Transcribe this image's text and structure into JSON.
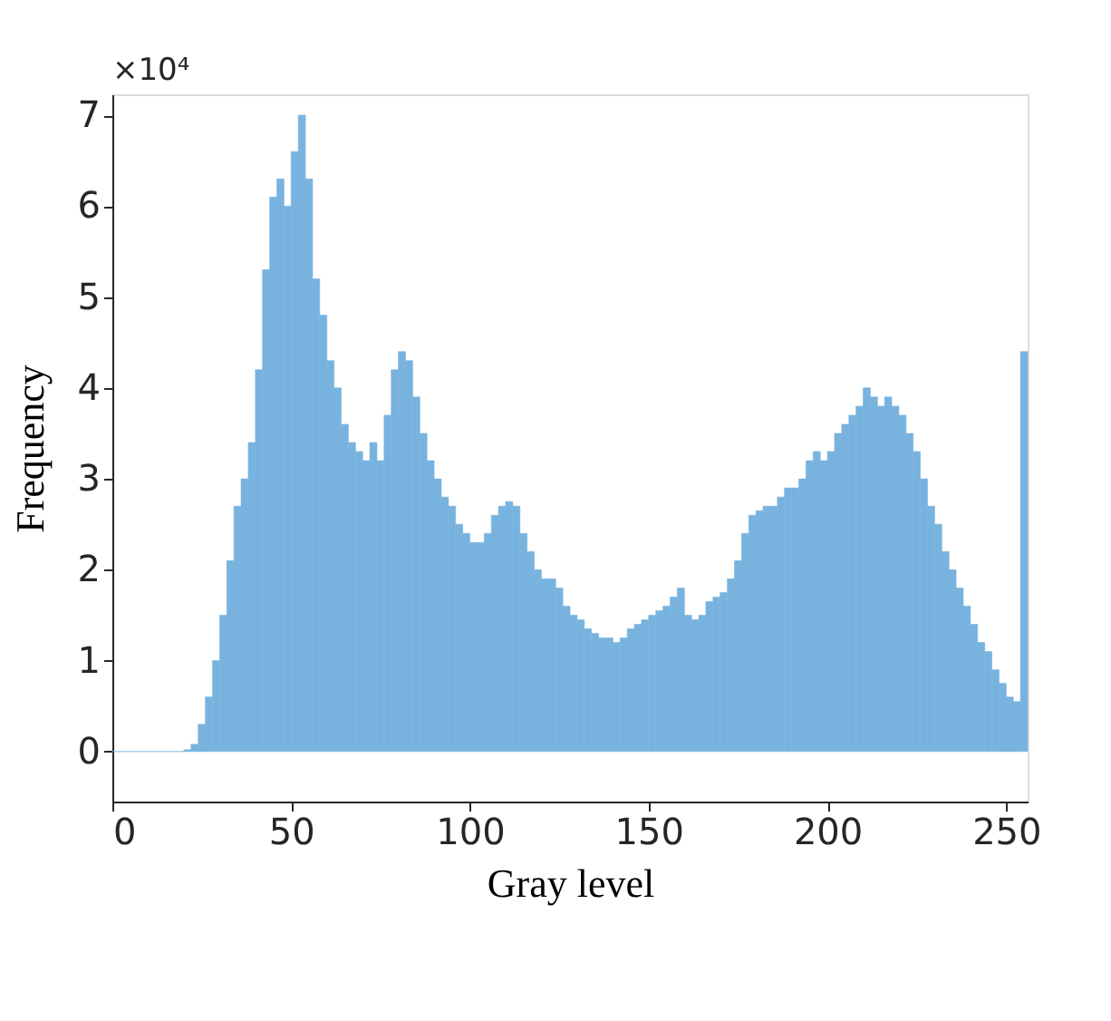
{
  "chart_data": {
    "type": "histogram",
    "xlabel": "Gray level",
    "ylabel": "Frequency",
    "annotations": [
      "×10⁴"
    ],
    "bins": [
      0,
      2,
      4,
      6,
      8,
      10,
      12,
      14,
      16,
      18,
      20,
      22,
      24,
      26,
      28,
      30,
      32,
      34,
      36,
      38,
      40,
      42,
      44,
      46,
      48,
      50,
      52,
      54,
      56,
      58,
      60,
      62,
      64,
      66,
      68,
      70,
      72,
      74,
      76,
      78,
      80,
      82,
      84,
      86,
      88,
      90,
      92,
      94,
      96,
      98,
      100,
      102,
      104,
      106,
      108,
      110,
      112,
      114,
      116,
      118,
      120,
      122,
      124,
      126,
      128,
      130,
      132,
      134,
      136,
      138,
      140,
      142,
      144,
      146,
      148,
      150,
      152,
      154,
      156,
      158,
      160,
      162,
      164,
      166,
      168,
      170,
      172,
      174,
      176,
      178,
      180,
      182,
      184,
      186,
      188,
      190,
      192,
      194,
      196,
      198,
      200,
      202,
      204,
      206,
      208,
      210,
      212,
      214,
      216,
      218,
      220,
      222,
      224,
      226,
      228,
      230,
      232,
      234,
      236,
      238,
      240,
      242,
      244,
      246,
      248,
      250,
      252,
      254,
      256
    ],
    "values": [
      0,
      0,
      0,
      0,
      0,
      0,
      0,
      0,
      0,
      0,
      0.02,
      0.08,
      0.3,
      0.6,
      1.0,
      1.5,
      2.1,
      2.7,
      3.0,
      3.4,
      4.2,
      5.3,
      6.1,
      6.3,
      6.0,
      6.6,
      7.0,
      6.3,
      5.2,
      4.8,
      4.3,
      4.0,
      3.6,
      3.4,
      3.3,
      3.2,
      3.4,
      3.2,
      3.7,
      4.2,
      4.4,
      4.3,
      3.9,
      3.5,
      3.2,
      3.0,
      2.8,
      2.7,
      2.5,
      2.4,
      2.3,
      2.3,
      2.4,
      2.6,
      2.7,
      2.75,
      2.7,
      2.4,
      2.2,
      2.0,
      1.9,
      1.9,
      1.8,
      1.6,
      1.5,
      1.45,
      1.35,
      1.3,
      1.25,
      1.25,
      1.2,
      1.25,
      1.35,
      1.4,
      1.45,
      1.5,
      1.55,
      1.6,
      1.7,
      1.8,
      1.5,
      1.45,
      1.5,
      1.65,
      1.7,
      1.75,
      1.9,
      2.1,
      2.4,
      2.6,
      2.65,
      2.7,
      2.7,
      2.8,
      2.9,
      2.9,
      3.0,
      3.2,
      3.3,
      3.2,
      3.3,
      3.5,
      3.6,
      3.7,
      3.8,
      4.0,
      3.9,
      3.8,
      3.9,
      3.8,
      3.7,
      3.5,
      3.3,
      3.0,
      2.7,
      2.5,
      2.2,
      2.0,
      1.8,
      1.6,
      1.4,
      1.2,
      1.1,
      0.9,
      0.75,
      0.6,
      0.55,
      4.4
    ],
    "color": "#78b3df",
    "xlim": [
      0,
      256
    ],
    "xticks": [
      0,
      50,
      100,
      150,
      200,
      250
    ],
    "ylim": [
      -0.55,
      7.23
    ],
    "yticks": [
      0,
      1,
      2,
      3,
      4,
      5,
      6,
      7
    ],
    "grid": false
  }
}
